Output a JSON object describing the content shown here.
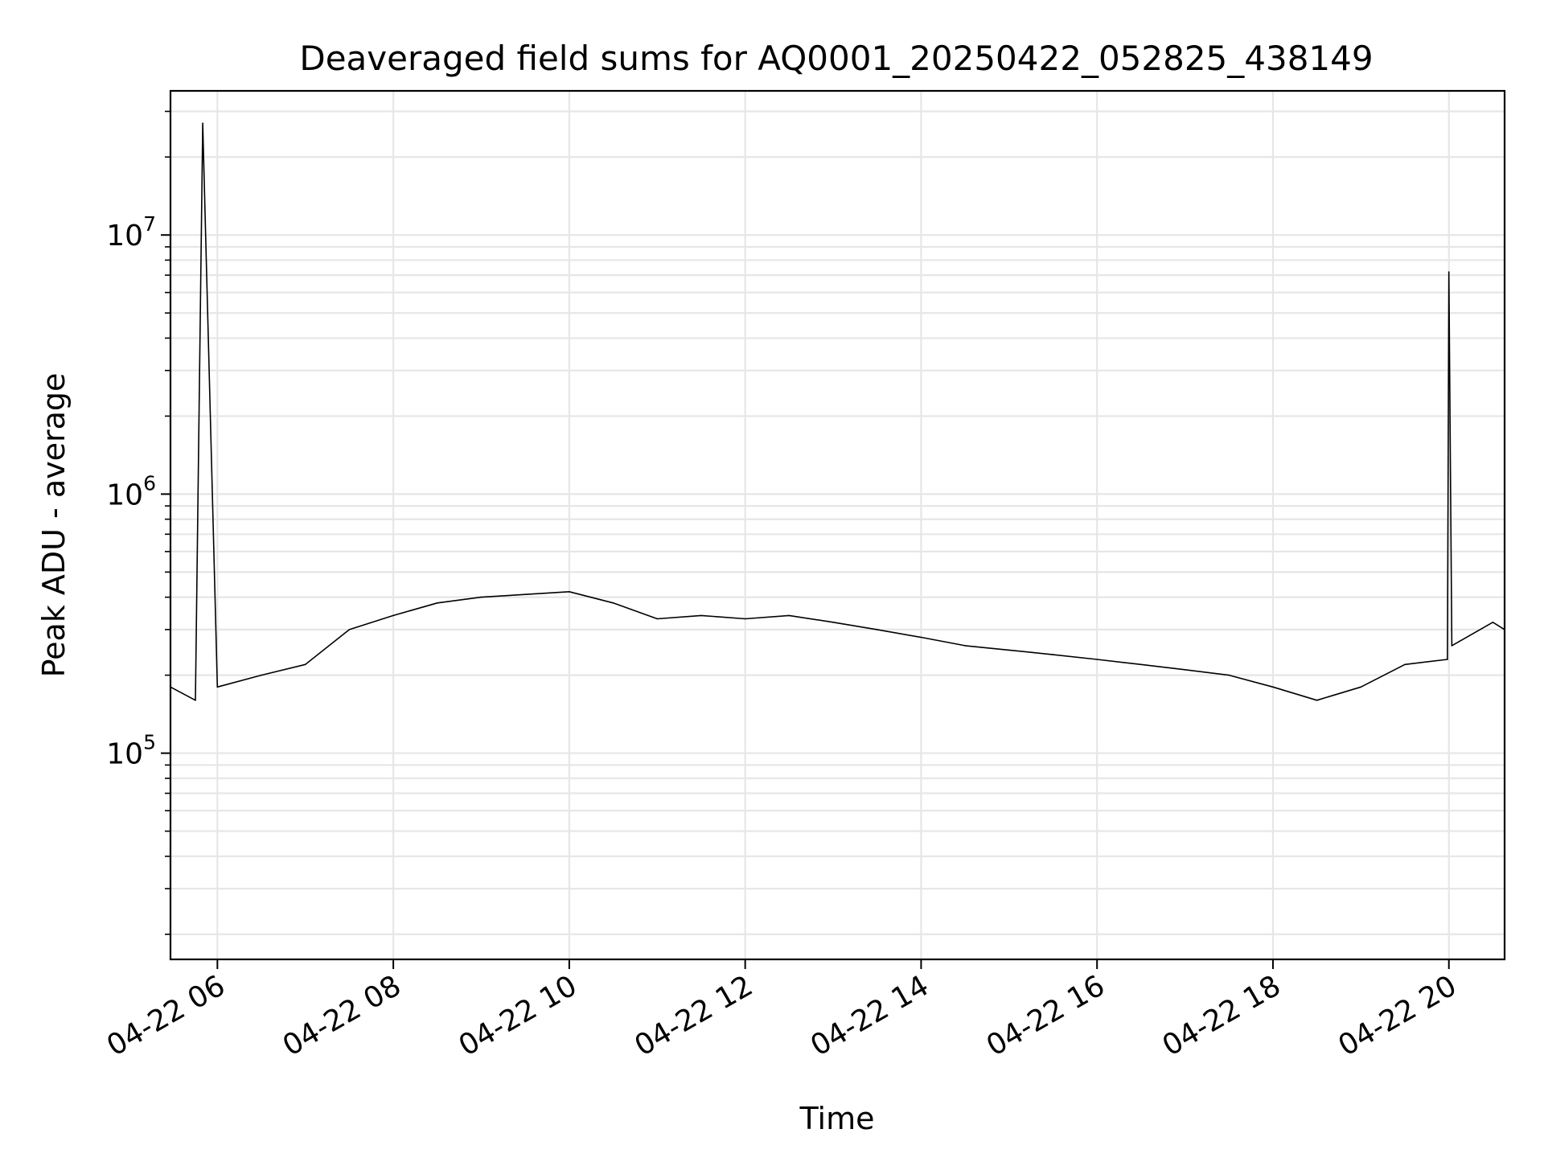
{
  "chart_data": {
    "type": "line",
    "title": "Deaveraged field sums for AQ0001_20250422_052825_438149",
    "xlabel": "Time",
    "ylabel": "Peak ADU - average",
    "yscale": "log",
    "grid": true,
    "line_color": "#000000",
    "grid_color": "#e6e6e6",
    "xlim": [
      "2025-04-22T05:28",
      "2025-04-22T20:38"
    ],
    "ylim": [
      16000,
      36000000
    ],
    "x_ticks": [
      {
        "value": "2025-04-22T06:00",
        "label": "04-22 06"
      },
      {
        "value": "2025-04-22T08:00",
        "label": "04-22 08"
      },
      {
        "value": "2025-04-22T10:00",
        "label": "04-22 10"
      },
      {
        "value": "2025-04-22T12:00",
        "label": "04-22 12"
      },
      {
        "value": "2025-04-22T14:00",
        "label": "04-22 14"
      },
      {
        "value": "2025-04-22T16:00",
        "label": "04-22 16"
      },
      {
        "value": "2025-04-22T18:00",
        "label": "04-22 18"
      },
      {
        "value": "2025-04-22T20:00",
        "label": "04-22 20"
      }
    ],
    "y_ticks": [
      {
        "value": 100000,
        "base": "10",
        "exp": "5"
      },
      {
        "value": 1000000,
        "base": "10",
        "exp": "6"
      },
      {
        "value": 10000000,
        "base": "10",
        "exp": "7"
      }
    ],
    "series": [
      {
        "x": [
          "2025-04-22T05:28",
          "2025-04-22T05:45",
          "2025-04-22T05:50",
          "2025-04-22T06:00",
          "2025-04-22T06:30",
          "2025-04-22T07:00",
          "2025-04-22T07:30",
          "2025-04-22T08:00",
          "2025-04-22T08:30",
          "2025-04-22T09:00",
          "2025-04-22T09:30",
          "2025-04-22T10:00",
          "2025-04-22T10:30",
          "2025-04-22T11:00",
          "2025-04-22T11:30",
          "2025-04-22T12:00",
          "2025-04-22T12:30",
          "2025-04-22T13:00",
          "2025-04-22T13:30",
          "2025-04-22T14:00",
          "2025-04-22T14:30",
          "2025-04-22T15:00",
          "2025-04-22T15:30",
          "2025-04-22T16:00",
          "2025-04-22T16:30",
          "2025-04-22T17:00",
          "2025-04-22T17:30",
          "2025-04-22T18:00",
          "2025-04-22T18:30",
          "2025-04-22T19:00",
          "2025-04-22T19:30",
          "2025-04-22T19:59",
          "2025-04-22T20:00",
          "2025-04-22T20:02",
          "2025-04-22T20:30",
          "2025-04-22T20:38"
        ],
        "y": [
          180000,
          160000,
          27000000,
          180000,
          200000,
          220000,
          300000,
          340000,
          380000,
          400000,
          410000,
          420000,
          380000,
          330000,
          340000,
          330000,
          340000,
          320000,
          300000,
          280000,
          260000,
          250000,
          240000,
          230000,
          220000,
          210000,
          200000,
          180000,
          160000,
          180000,
          220000,
          230000,
          7200000,
          260000,
          320000,
          300000
        ]
      }
    ]
  }
}
